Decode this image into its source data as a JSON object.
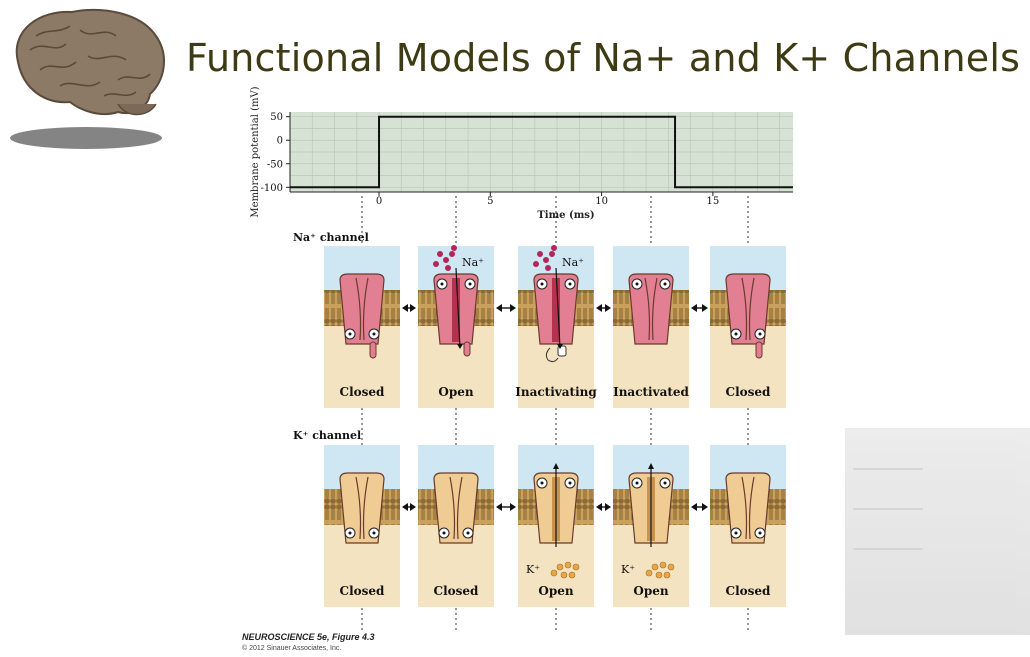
{
  "slide": {
    "title": "Functional Models of Na+ and K+ Channels"
  },
  "figure": {
    "caption": "NEUROSCIENCE 5e, Figure 4.3",
    "copyright": "© 2012 Sinauer Associates, Inc."
  },
  "chart_data": {
    "type": "line",
    "ylabel": "Membrane potential (mV)",
    "xlabel": "Time (ms)",
    "y_ticks": [
      "50",
      "0",
      "-50",
      "-100"
    ],
    "x_ticks": [
      "0",
      "5",
      "10",
      "15"
    ],
    "xlim": [
      -4,
      18.6
    ],
    "ylim": [
      -110,
      60
    ],
    "series": [
      {
        "x": [
          -4,
          0,
          0,
          13.3,
          13.3,
          18.6
        ],
        "y": [
          -100,
          -100,
          50,
          50,
          -100,
          -100
        ]
      }
    ]
  },
  "na_row": {
    "label": "Na⁺ channel",
    "ion": "Na⁺",
    "states": [
      "Closed",
      "Open",
      "Inactivating",
      "Inactivated",
      "Closed"
    ]
  },
  "k_row": {
    "label": "K⁺ channel",
    "ion": "K⁺",
    "states": [
      "Closed",
      "Closed",
      "Open",
      "Open",
      "Closed"
    ]
  },
  "colors": {
    "na_channel": "#e27f93",
    "k_channel": "#f0cc95",
    "plot_bg": "#d6e3d4",
    "extracellular": "#cfe6f3",
    "intracellular": "#f3e3c1",
    "na_ion": "#b3265a",
    "k_ion": "#e8a64a"
  }
}
